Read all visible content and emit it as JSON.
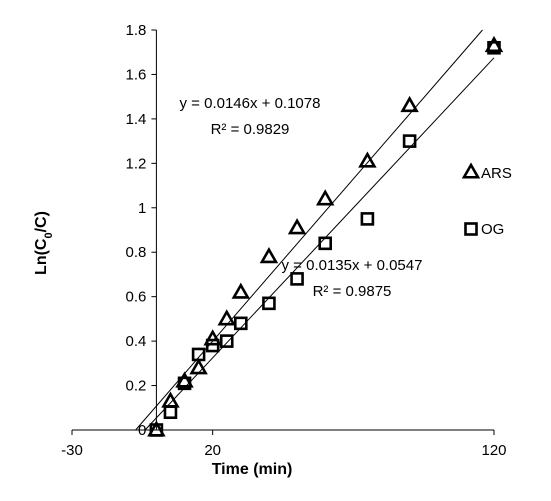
{
  "chart_data": {
    "type": "scatter",
    "xlabel": "Time (min)",
    "ylabel_main": "Ln(C",
    "ylabel_sub": "0",
    "ylabel_tail": "/C)",
    "xlim": [
      -30,
      120
    ],
    "ylim": [
      0,
      1.8
    ],
    "xticks": [
      -30,
      20,
      120
    ],
    "yticks": [
      0,
      0.2,
      0.4,
      0.6,
      0.8,
      1,
      1.2,
      1.4,
      1.6,
      1.8
    ],
    "grid": false,
    "legend_position": "right",
    "series": [
      {
        "name": "ARS",
        "marker": "triangle",
        "x": [
          0,
          5,
          10,
          15,
          20,
          25,
          30,
          40,
          50,
          60,
          75,
          90,
          120
        ],
        "y": [
          0,
          0.13,
          0.22,
          0.28,
          0.41,
          0.5,
          0.62,
          0.78,
          0.91,
          1.04,
          1.21,
          1.46,
          1.73
        ],
        "trendline": {
          "slope": 0.0146,
          "intercept": 0.1078
        },
        "equation": "y = 0.0146x + 0.1078",
        "r2": "R² = 0.9829"
      },
      {
        "name": "OG",
        "marker": "square",
        "x": [
          0,
          5,
          10,
          15,
          20,
          25,
          30,
          40,
          50,
          60,
          75,
          90,
          120
        ],
        "y": [
          0,
          0.08,
          0.21,
          0.34,
          0.38,
          0.4,
          0.48,
          0.57,
          0.68,
          0.84,
          0.95,
          1.3,
          1.72
        ],
        "trendline": {
          "slope": 0.0135,
          "intercept": 0.0547
        },
        "equation": "y = 0.0135x + 0.0547",
        "r2": "R² = 0.9875"
      }
    ]
  }
}
